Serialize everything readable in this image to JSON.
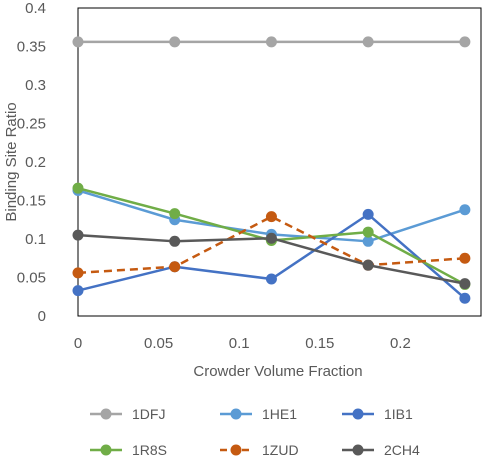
{
  "chart_data": {
    "type": "line",
    "title": "",
    "xlabel": "Crowder Volume Fraction",
    "ylabel": "Binding Site Ratio",
    "xlim": [
      0,
      0.25
    ],
    "ylim": [
      0,
      0.4
    ],
    "xticks": [
      0,
      0.05,
      0.1,
      0.15,
      0.2
    ],
    "xtick_labels": [
      "0",
      "0.05",
      "0.1",
      "0.15",
      "0.2"
    ],
    "yticks": [
      0,
      0.05,
      0.1,
      0.15,
      0.2,
      0.25,
      0.3,
      0.35,
      0.4
    ],
    "ytick_labels": [
      "0",
      "0.05",
      "0.1",
      "0.15",
      "0.2",
      "0.25",
      "0.3",
      "0.35",
      "0.4"
    ],
    "grid": false,
    "legend_position": "bottom",
    "x": [
      0,
      0.06,
      0.12,
      0.18,
      0.24
    ],
    "series": [
      {
        "name": "1DFJ",
        "color": "#A5A5A5",
        "dash": false,
        "values": [
          0.356,
          0.356,
          0.356,
          0.356,
          0.356
        ]
      },
      {
        "name": "1HE1",
        "color": "#5B9BD5",
        "dash": false,
        "values": [
          0.163,
          0.125,
          0.106,
          0.097,
          0.138
        ]
      },
      {
        "name": "1IB1",
        "color": "#4472C4",
        "dash": false,
        "values": [
          0.033,
          0.064,
          0.048,
          0.132,
          0.023
        ]
      },
      {
        "name": "1R8S",
        "color": "#70AD47",
        "dash": false,
        "values": [
          0.166,
          0.133,
          0.098,
          0.109,
          0.041
        ]
      },
      {
        "name": "1ZUD",
        "color": "#C55A11",
        "dash": true,
        "values": [
          0.056,
          0.064,
          0.129,
          0.066,
          0.075
        ]
      },
      {
        "name": "2CH4",
        "color": "#595959",
        "dash": false,
        "values": [
          0.105,
          0.097,
          0.101,
          0.066,
          0.042
        ]
      }
    ]
  }
}
